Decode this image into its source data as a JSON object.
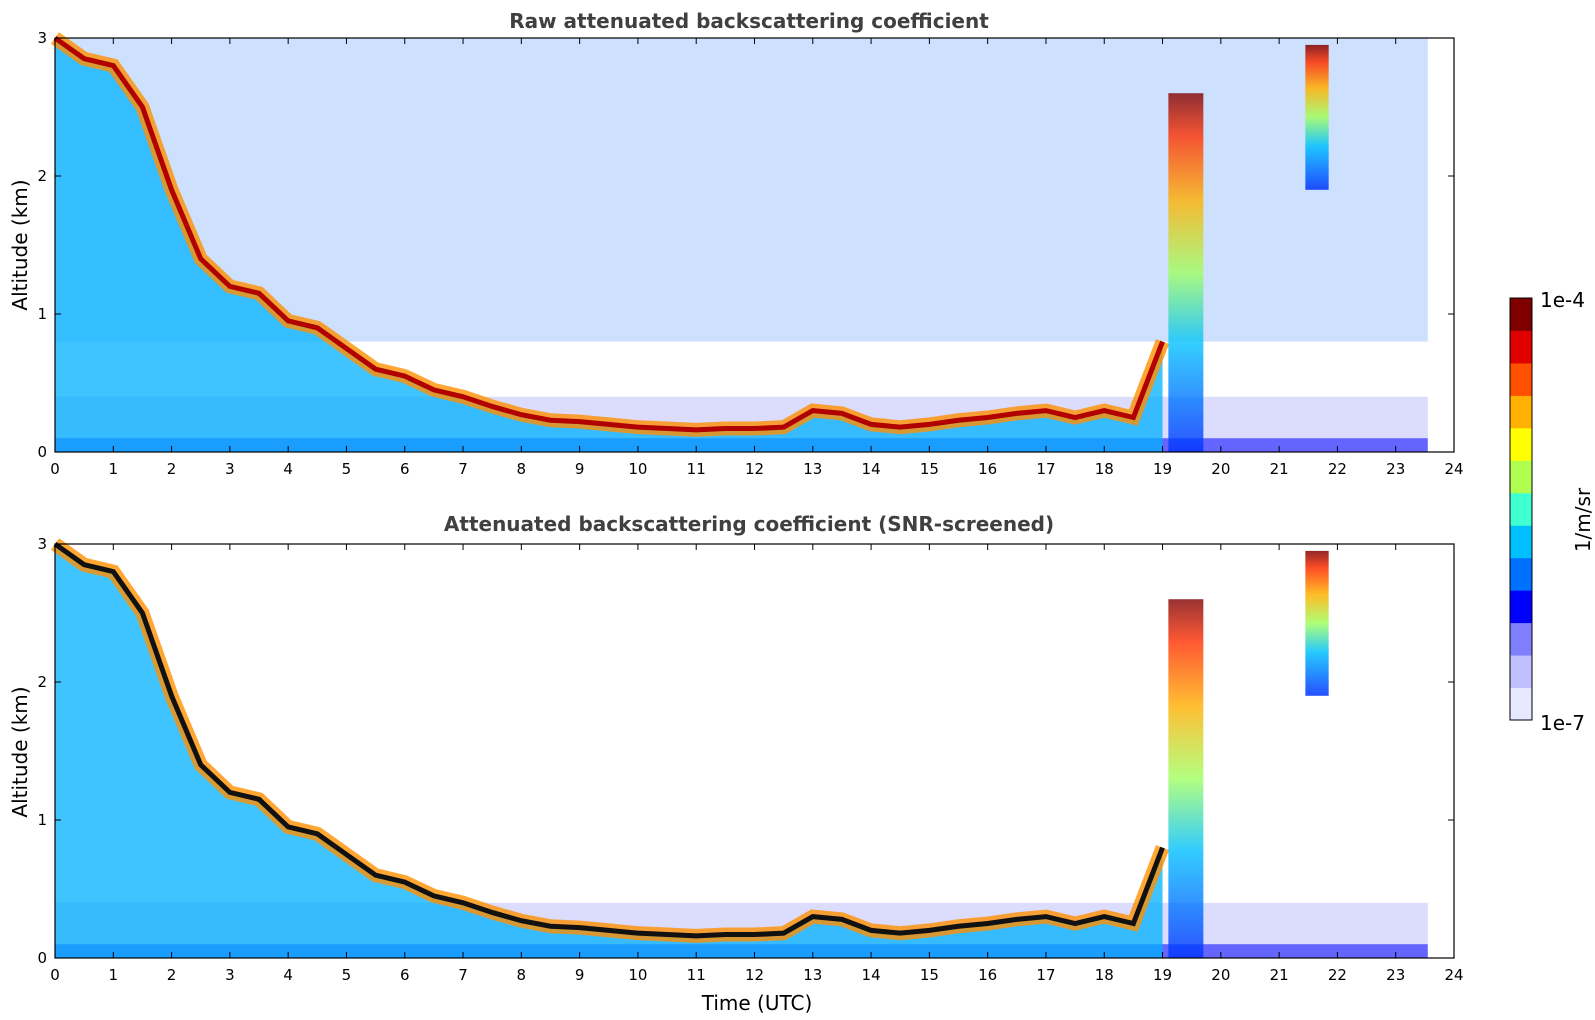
{
  "chart_data": [
    {
      "type": "heatmap",
      "title": "Raw attenuated backscattering coefficient",
      "xlabel": "",
      "ylabel": "Altitude (km)",
      "xlim": [
        0,
        24
      ],
      "ylim": [
        0,
        3
      ],
      "xticks": [
        "0",
        "1",
        "2",
        "3",
        "4",
        "5",
        "6",
        "7",
        "8",
        "9",
        "10",
        "11",
        "12",
        "13",
        "14",
        "15",
        "16",
        "17",
        "18",
        "19",
        "20",
        "21",
        "22",
        "23",
        "24"
      ],
      "yticks": [
        "0",
        "1",
        "2",
        "3"
      ],
      "layer_top_km": [
        [
          0.0,
          3.0
        ],
        [
          0.5,
          2.85
        ],
        [
          1.0,
          2.8
        ],
        [
          1.5,
          2.5
        ],
        [
          2.0,
          1.9
        ],
        [
          2.5,
          1.4
        ],
        [
          3.0,
          1.2
        ],
        [
          3.5,
          1.15
        ],
        [
          4.0,
          0.95
        ],
        [
          4.5,
          0.9
        ],
        [
          5.0,
          0.75
        ],
        [
          5.5,
          0.6
        ],
        [
          6.0,
          0.55
        ],
        [
          6.5,
          0.45
        ],
        [
          7.0,
          0.4
        ],
        [
          7.5,
          0.33
        ],
        [
          8.0,
          0.27
        ],
        [
          8.5,
          0.23
        ],
        [
          9.0,
          0.22
        ],
        [
          9.5,
          0.2
        ],
        [
          10.0,
          0.18
        ],
        [
          10.5,
          0.17
        ],
        [
          11.0,
          0.16
        ],
        [
          11.5,
          0.17
        ],
        [
          12.0,
          0.17
        ],
        [
          12.5,
          0.18
        ],
        [
          13.0,
          0.3
        ],
        [
          13.5,
          0.28
        ],
        [
          14.0,
          0.2
        ],
        [
          14.5,
          0.18
        ],
        [
          15.0,
          0.2
        ],
        [
          15.5,
          0.23
        ],
        [
          16.0,
          0.25
        ],
        [
          16.5,
          0.28
        ],
        [
          17.0,
          0.3
        ],
        [
          17.5,
          0.25
        ],
        [
          18.0,
          0.3
        ],
        [
          18.5,
          0.25
        ],
        [
          19.0,
          0.8
        ]
      ]
    },
    {
      "type": "heatmap",
      "title": "Attenuated backscattering coefficient (SNR-screened)",
      "xlabel": "Time (UTC)",
      "ylabel": "Altitude (km)",
      "xlim": [
        0,
        24
      ],
      "ylim": [
        0,
        3
      ],
      "xticks": [
        "0",
        "1",
        "2",
        "3",
        "4",
        "5",
        "6",
        "7",
        "8",
        "9",
        "10",
        "11",
        "12",
        "13",
        "14",
        "15",
        "16",
        "17",
        "18",
        "19",
        "20",
        "21",
        "22",
        "23",
        "24"
      ],
      "yticks": [
        "0",
        "1",
        "2",
        "3"
      ]
    }
  ],
  "colorbar": {
    "max_label": "1e-4",
    "min_label": "1e-7",
    "unit_label": "1/m/sr",
    "colors": [
      "#e8e8ff",
      "#c0c0ff",
      "#8080ff",
      "#0000ff",
      "#0070ff",
      "#00c0ff",
      "#40ffd0",
      "#b0ff50",
      "#ffff00",
      "#ffb000",
      "#ff5000",
      "#e00000",
      "#800000"
    ]
  }
}
